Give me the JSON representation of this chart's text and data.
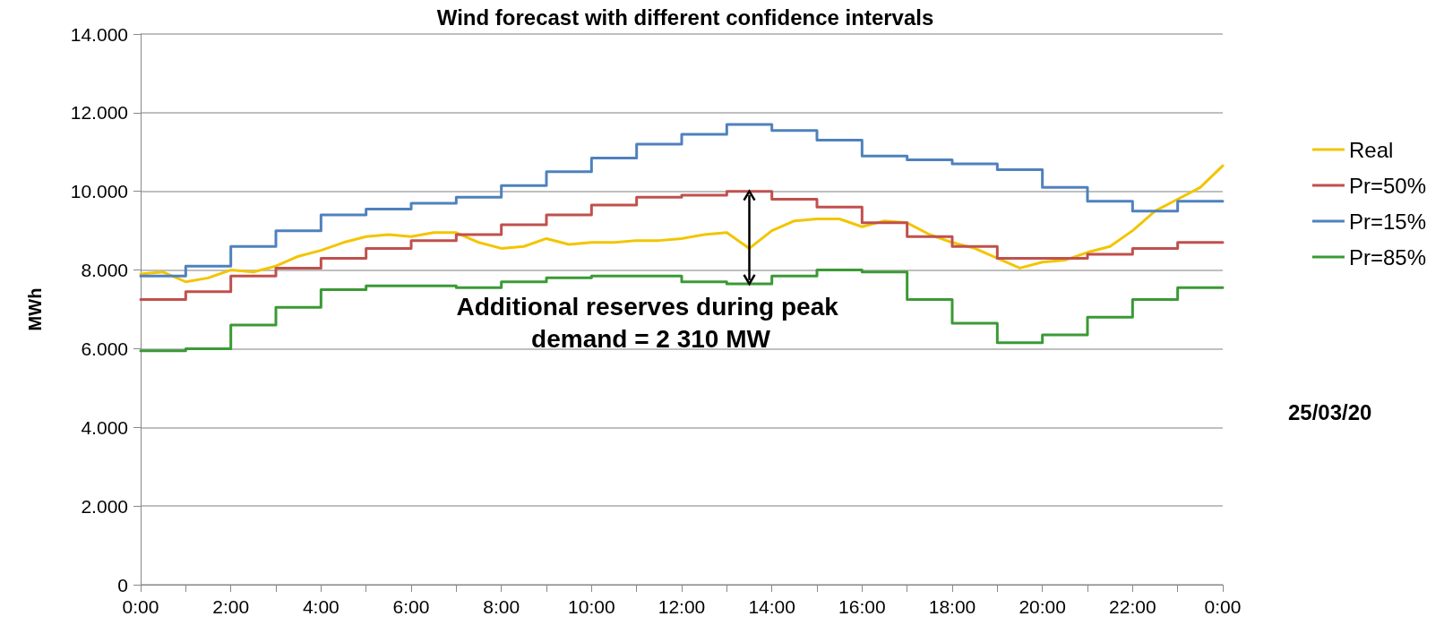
{
  "chart_data": {
    "type": "step",
    "title": "Wind forecast with different confidence intervals",
    "ylabel": "MWh",
    "annotations": [
      {
        "text": "Additional reserves during peak demand = 2 310 MW",
        "x": 13.5,
        "y": 10000
      },
      "25/03/20"
    ],
    "xlim": [
      0,
      24
    ],
    "ylim": [
      0,
      14000
    ],
    "xticks": [
      {
        "value": 0,
        "label": "0:00"
      },
      {
        "value": 1,
        "label": null
      },
      {
        "value": 2,
        "label": "2:00"
      },
      {
        "value": 3,
        "label": null
      },
      {
        "value": 4,
        "label": "4:00"
      },
      {
        "value": 5,
        "label": null
      },
      {
        "value": 6,
        "label": "6:00"
      },
      {
        "value": 7,
        "label": null
      },
      {
        "value": 8,
        "label": "8:00"
      },
      {
        "value": 9,
        "label": null
      },
      {
        "value": 10,
        "label": "10:00"
      },
      {
        "value": 11,
        "label": null
      },
      {
        "value": 12,
        "label": "12:00"
      },
      {
        "value": 13,
        "label": null
      },
      {
        "value": 14,
        "label": "14:00"
      },
      {
        "value": 15,
        "label": null
      },
      {
        "value": 16,
        "label": "16:00"
      },
      {
        "value": 17,
        "label": null
      },
      {
        "value": 18,
        "label": "18:00"
      },
      {
        "value": 19,
        "label": null
      },
      {
        "value": 20,
        "label": "20:00"
      },
      {
        "value": 21,
        "label": null
      },
      {
        "value": 22,
        "label": "22:00"
      },
      {
        "value": 23,
        "label": null
      },
      {
        "value": 24,
        "label": "0:00"
      }
    ],
    "yticks": [
      0,
      {
        "value": 2000,
        "label": "2.000"
      },
      {
        "value": 4000,
        "label": "4.000"
      },
      {
        "value": 6000,
        "label": "6.000"
      },
      {
        "value": 8000,
        "label": "8.000"
      },
      {
        "value": 10000,
        "label": "10.000"
      },
      {
        "value": 12000,
        "label": "12.000"
      },
      {
        "value": 14000,
        "label": "14.000"
      }
    ],
    "grid": "y",
    "legend": "right",
    "marker": "none",
    "line_style": "solid",
    "series": [
      {
        "name": "Real",
        "type": "line",
        "color": "#f2c500",
        "x": [
          0,
          0.5,
          1,
          1.5,
          2,
          2.5,
          3,
          3.5,
          4,
          4.5,
          5,
          5.5,
          6,
          6.5,
          7,
          7.5,
          8,
          8.5,
          9,
          9.5,
          10,
          10.5,
          11,
          11.5,
          12,
          12.5,
          13,
          13.5,
          14,
          14.5,
          15,
          15.5,
          16,
          16.5,
          17,
          17.5,
          18,
          18.5,
          19,
          19.5,
          20,
          20.5,
          21,
          21.5,
          22,
          22.5,
          23,
          23.5,
          24
        ],
        "values": [
          7900,
          7950,
          7700,
          7800,
          8000,
          7950,
          8100,
          8350,
          8500,
          8700,
          8850,
          8900,
          8850,
          8950,
          8950,
          8700,
          8550,
          8600,
          8800,
          8650,
          8700,
          8700,
          8750,
          8750,
          8800,
          8900,
          8950,
          8550,
          9000,
          9250,
          9300,
          9300,
          9100,
          9250,
          9200,
          8900,
          8700,
          8550,
          8300,
          8050,
          8200,
          8250,
          8450,
          8600,
          9000,
          9500,
          9800,
          10100,
          10650
        ]
      },
      {
        "name": "Pr=50%",
        "color": "#c0504d",
        "x": [
          0,
          1,
          2,
          3,
          4,
          5,
          6,
          7,
          8,
          9,
          10,
          11,
          12,
          13,
          14,
          15,
          16,
          17,
          18,
          19,
          20,
          21,
          22,
          23,
          24
        ],
        "values": [
          7250,
          7450,
          7850,
          8050,
          8300,
          8550,
          8750,
          8900,
          9150,
          9400,
          9650,
          9850,
          9900,
          10000,
          9800,
          9600,
          9200,
          8850,
          8600,
          8300,
          8300,
          8400,
          8550,
          8700,
          8700
        ]
      },
      {
        "name": "Pr=15%",
        "color": "#4f81bd",
        "x": [
          0,
          1,
          2,
          3,
          4,
          5,
          6,
          7,
          8,
          9,
          10,
          11,
          12,
          13,
          14,
          15,
          16,
          17,
          18,
          19,
          20,
          21,
          22,
          23,
          24
        ],
        "values": [
          7850,
          8100,
          8600,
          9000,
          9400,
          9550,
          9700,
          9850,
          10150,
          10500,
          10850,
          11200,
          11450,
          11700,
          11550,
          11300,
          10900,
          10800,
          10700,
          10550,
          10100,
          9750,
          9500,
          9750,
          9750
        ]
      },
      {
        "name": "Pr=85%",
        "color": "#3a9a35",
        "x": [
          0,
          1,
          2,
          3,
          4,
          5,
          6,
          7,
          8,
          9,
          10,
          11,
          12,
          13,
          14,
          15,
          16,
          17,
          18,
          19,
          20,
          21,
          22,
          23,
          24
        ],
        "values": [
          5950,
          6000,
          6600,
          7050,
          7500,
          7600,
          7600,
          7550,
          7700,
          7800,
          7850,
          7850,
          7700,
          7650,
          7850,
          8000,
          7950,
          7250,
          6650,
          6150,
          6350,
          6800,
          7250,
          7550,
          7550
        ]
      }
    ]
  }
}
